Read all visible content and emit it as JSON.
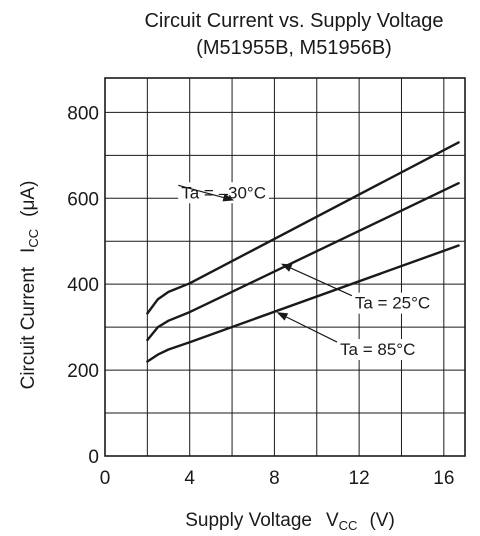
{
  "chart_data": {
    "type": "line",
    "title": "Circuit Current vs. Supply Voltage",
    "subtitle": "(M51955B, M51956B)",
    "xlabel": {
      "main": "Supply Voltage",
      "symbol": "V",
      "subscript": "CC",
      "unit": "(V)"
    },
    "ylabel": {
      "main": "Circuit Current",
      "symbol": "I",
      "subscript": "CC",
      "unit": "(μA)"
    },
    "xlim": [
      0,
      17
    ],
    "ylim": [
      0,
      880
    ],
    "xticks": [
      0,
      4,
      8,
      12,
      16
    ],
    "yticks": [
      0,
      200,
      400,
      600,
      800
    ],
    "xgrid": [
      2,
      4,
      6,
      8,
      10,
      12,
      14,
      16
    ],
    "ygrid": [
      100,
      200,
      300,
      400,
      500,
      600,
      700,
      800
    ],
    "grid": true,
    "series": [
      {
        "name": "Ta = –30°C",
        "x": [
          2,
          2.5,
          3,
          4,
          16.7
        ],
        "y": [
          332,
          365,
          382,
          402,
          730
        ]
      },
      {
        "name": "Ta = 25°C",
        "x": [
          2,
          2.5,
          3,
          4,
          16.7
        ],
        "y": [
          270,
          300,
          315,
          335,
          635
        ]
      },
      {
        "name": "Ta = 85°C",
        "x": [
          2,
          2.5,
          3,
          4,
          16.7
        ],
        "y": [
          220,
          236,
          248,
          265,
          490
        ]
      }
    ],
    "annotations": [
      {
        "text": "Ta = –30°C",
        "series": 0,
        "at": [
          6.1,
          595
        ],
        "label": [
          3.6,
          600
        ]
      },
      {
        "text": "Ta = 25°C",
        "series": 1,
        "at": [
          8.3,
          448
        ],
        "label": [
          11.8,
          343
        ]
      },
      {
        "text": "Ta = 85°C",
        "series": 2,
        "at": [
          8.1,
          335
        ],
        "label": [
          11.1,
          235
        ]
      }
    ]
  }
}
